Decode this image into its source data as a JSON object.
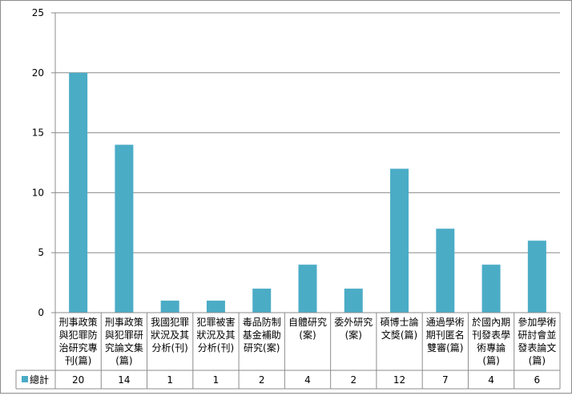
{
  "chart_data": {
    "type": "bar",
    "categories": [
      [
        "刑事政策",
        "與犯罪防",
        "治研究專",
        "刊(篇)"
      ],
      [
        "刑事政策",
        "與犯罪研",
        "究論文集",
        "(篇)"
      ],
      [
        "我國犯罪",
        "狀況及其",
        "分析(刊)"
      ],
      [
        "犯罪被害",
        "狀況及其",
        "分析(刊)"
      ],
      [
        "毒品防制",
        "基金補助",
        "研究(案)"
      ],
      [
        "自體研究",
        "(案)"
      ],
      [
        "委外研究",
        "(案)"
      ],
      [
        "碩博士論",
        "文獎(篇)"
      ],
      [
        "通過學術",
        "期刊匿名",
        "雙審(篇)"
      ],
      [
        "於國內期",
        "刊發表學",
        "術專論",
        "(篇)"
      ],
      [
        "參加學術",
        "研討會並",
        "發表論文",
        "(篇)"
      ]
    ],
    "series": [
      {
        "name": "總計",
        "values": [
          20,
          14,
          1,
          1,
          2,
          4,
          2,
          12,
          7,
          4,
          6
        ],
        "color": "#4bacc6"
      }
    ],
    "ylim": [
      0,
      25
    ],
    "yticks": [
      "0",
      "5",
      "10",
      "15",
      "20",
      "25"
    ],
    "ytick_values": [
      0,
      5,
      10,
      15,
      20,
      25
    ],
    "grid": true,
    "legend": "data-table-left",
    "title": "",
    "xlabel": "",
    "ylabel": ""
  }
}
